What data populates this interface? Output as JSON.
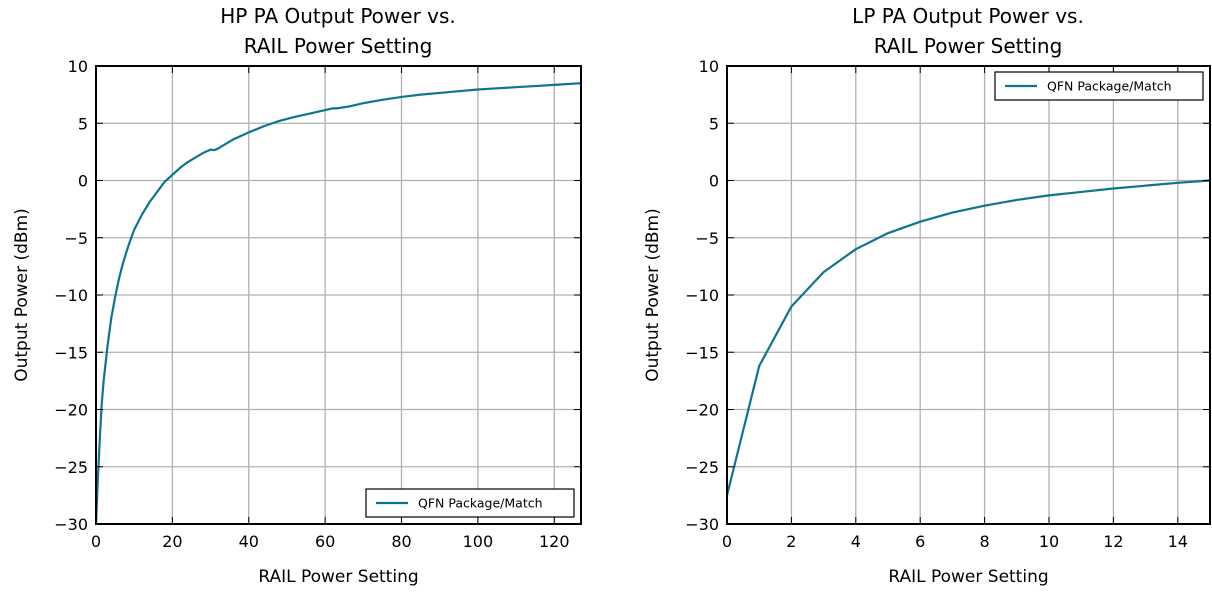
{
  "colors": {
    "series": "#0e7490",
    "grid": "#b0b0b0",
    "frame": "#000000"
  },
  "chart_data": [
    {
      "type": "line",
      "title": "HP PA Output Power vs.",
      "subtitle": "RAIL Power Setting",
      "xlabel": "RAIL Power Setting",
      "ylabel": "Output Power (dBm)",
      "xlim": [
        0,
        127
      ],
      "ylim": [
        -30,
        10
      ],
      "xticks": [
        0,
        20,
        40,
        60,
        80,
        100,
        120
      ],
      "yticks": [
        -30,
        -25,
        -20,
        -15,
        -10,
        -5,
        0,
        5,
        10
      ],
      "grid": true,
      "legend_position": "lower-right",
      "series": [
        {
          "name": "QFN Package/Match",
          "x": [
            0,
            0.5,
            1,
            1.5,
            2,
            3,
            4,
            5,
            6,
            7,
            8,
            9,
            10,
            12,
            14,
            16,
            18,
            20,
            22,
            24,
            26,
            28,
            30,
            31,
            32,
            34,
            36,
            38,
            40,
            44,
            48,
            52,
            56,
            60,
            62,
            63,
            64,
            66,
            70,
            75,
            80,
            85,
            90,
            95,
            100,
            105,
            110,
            115,
            120,
            127
          ],
          "y": [
            -30,
            -26,
            -22.5,
            -19.5,
            -17.5,
            -14.5,
            -12,
            -10.2,
            -8.6,
            -7.3,
            -6.2,
            -5.2,
            -4.3,
            -3,
            -1.9,
            -1,
            -0.1,
            0.5,
            1.1,
            1.6,
            2,
            2.4,
            2.7,
            2.65,
            2.8,
            3.2,
            3.6,
            3.9,
            4.2,
            4.75,
            5.2,
            5.55,
            5.85,
            6.15,
            6.3,
            6.3,
            6.35,
            6.45,
            6.75,
            7.05,
            7.3,
            7.5,
            7.65,
            7.8,
            7.95,
            8.05,
            8.15,
            8.25,
            8.35,
            8.5
          ]
        }
      ]
    },
    {
      "type": "line",
      "title": "LP PA Output Power vs.",
      "subtitle": "RAIL Power Setting",
      "xlabel": "RAIL Power Setting",
      "ylabel": "Output Power (dBm)",
      "xlim": [
        0,
        15
      ],
      "ylim": [
        -30,
        10
      ],
      "xticks": [
        0,
        2,
        4,
        6,
        8,
        10,
        12,
        14
      ],
      "yticks": [
        -30,
        -25,
        -20,
        -15,
        -10,
        -5,
        0,
        5,
        10
      ],
      "grid": true,
      "legend_position": "top-right",
      "series": [
        {
          "name": "QFN Package/Match",
          "x": [
            0,
            1,
            2,
            3,
            4,
            5,
            6,
            7,
            8,
            9,
            10,
            11,
            12,
            13,
            14,
            15
          ],
          "y": [
            -27.5,
            -16.2,
            -11,
            -8,
            -6,
            -4.6,
            -3.6,
            -2.8,
            -2.2,
            -1.7,
            -1.3,
            -1,
            -0.7,
            -0.45,
            -0.2,
            0
          ]
        }
      ]
    }
  ]
}
